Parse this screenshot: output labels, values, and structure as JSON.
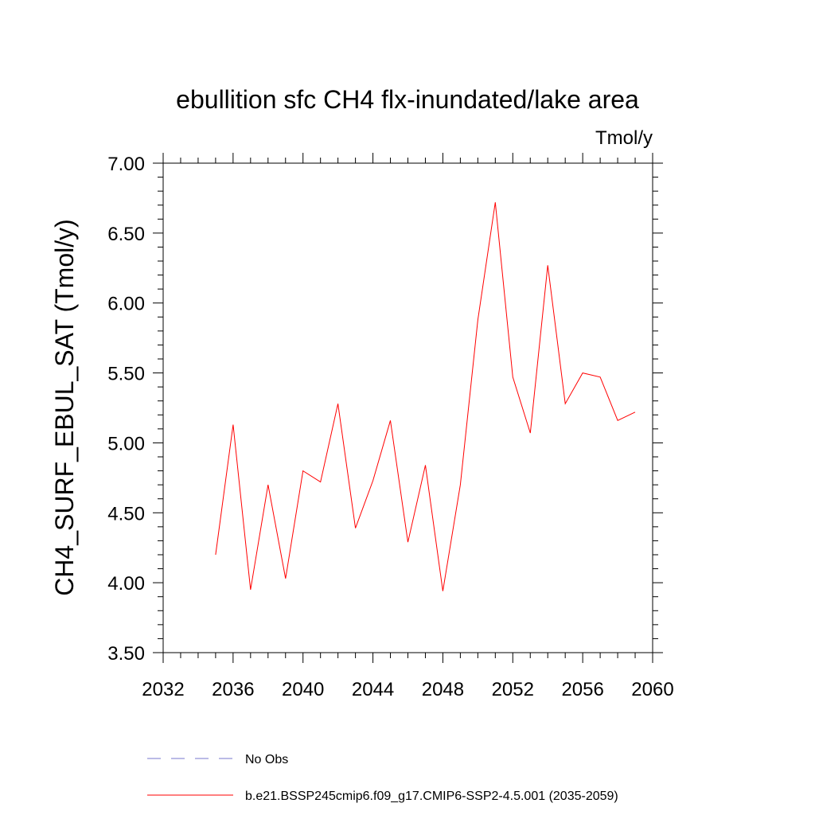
{
  "chart_data": {
    "type": "line",
    "title": "ebullition sfc CH4 flx-inundated/lake area",
    "units": "Tmol/y",
    "xlabel": "",
    "ylabel": "CH4_SURF_EBUL_SAT  (Tmol/y)",
    "xlim": [
      2032,
      2060
    ],
    "ylim": [
      3.5,
      7.0
    ],
    "x_ticks": [
      "2032",
      "2036",
      "2040",
      "2044",
      "2048",
      "2052",
      "2056",
      "2060"
    ],
    "y_ticks": [
      "3.50",
      "4.00",
      "4.50",
      "5.00",
      "5.50",
      "6.00",
      "6.50",
      "7.00"
    ],
    "x": [
      2035,
      2036,
      2037,
      2038,
      2039,
      2040,
      2041,
      2042,
      2043,
      2044,
      2045,
      2046,
      2047,
      2048,
      2049,
      2050,
      2051,
      2052,
      2053,
      2054,
      2055,
      2056,
      2057,
      2058,
      2059
    ],
    "series": [
      {
        "name": "b.e21.BSSP245cmip6.f09_g17.CMIP6-SSP2-4.5.001 (2035-2059)",
        "color": "#ff0000",
        "values": [
          4.2,
          5.13,
          3.95,
          4.7,
          4.03,
          4.8,
          4.72,
          5.28,
          4.39,
          4.73,
          5.16,
          4.29,
          4.84,
          3.94,
          4.7,
          5.88,
          6.72,
          5.47,
          5.07,
          6.27,
          5.28,
          5.5,
          5.47,
          5.16,
          5.22
        ]
      }
    ],
    "legend": [
      {
        "label": "No Obs",
        "color": "#7777cc",
        "style": "dashed"
      },
      {
        "label": "b.e21.BSSP245cmip6.f09_g17.CMIP6-SSP2-4.5.001 (2035-2059)",
        "color": "#ff0000",
        "style": "solid"
      }
    ],
    "legend_position": "bottom",
    "grid": false
  }
}
